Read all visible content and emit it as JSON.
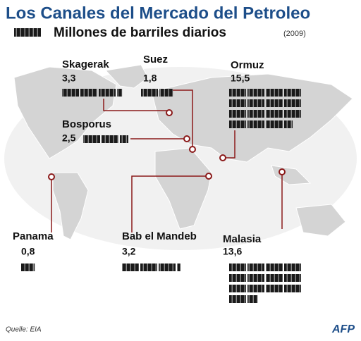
{
  "header": {
    "title": "Los Canales del Mercado del Petroleo",
    "legend": "Millones de barriles diarios",
    "year": "(2009)"
  },
  "channels": [
    {
      "name": "Skagerak",
      "value": 3.3,
      "value_label": "3,3"
    },
    {
      "name": "Suez",
      "value": 1.8,
      "value_label": "1,8"
    },
    {
      "name": "Ormuz",
      "value": 15.5,
      "value_label": "15,5"
    },
    {
      "name": "Bosporus",
      "value": 2.5,
      "value_label": "2,5"
    },
    {
      "name": "Panama",
      "value": 0.8,
      "value_label": "0,8"
    },
    {
      "name": "Bab el Mandeb",
      "value": 3.2,
      "value_label": "3,2"
    },
    {
      "name": "Malasia",
      "value": 13.6,
      "value_label": "13,6"
    }
  ],
  "footer": {
    "source": "Quelle: EIA",
    "agency": "AFP"
  }
}
